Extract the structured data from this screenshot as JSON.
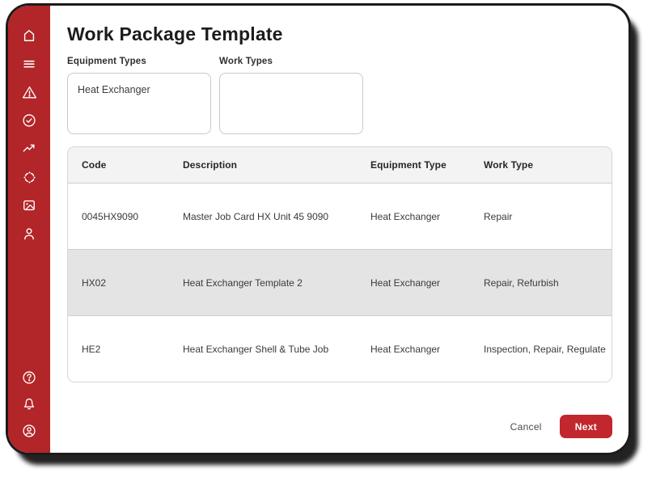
{
  "page": {
    "title": "Work Package Template"
  },
  "sidebar": {
    "top_icons": [
      "home-icon",
      "menu-icon",
      "alert-triangle-icon",
      "check-circle-icon",
      "trending-up-icon",
      "hub-icon",
      "image-icon",
      "user-icon"
    ],
    "bottom_icons": [
      "help-circle-icon",
      "bell-icon",
      "account-circle-icon"
    ]
  },
  "form": {
    "equipment_types": {
      "label": "Equipment Types",
      "value": "Heat Exchanger"
    },
    "work_types": {
      "label": "Work Types",
      "value": ""
    }
  },
  "table": {
    "columns": [
      "Code",
      "Description",
      "Equipment Type",
      "Work Type"
    ],
    "rows": [
      {
        "code": "0045HX9090",
        "description": "Master Job Card HX Unit 45 9090",
        "equipment_type": "Heat Exchanger",
        "work_type": "Repair",
        "selected": false
      },
      {
        "code": "HX02",
        "description": "Heat Exchanger Template 2",
        "equipment_type": "Heat Exchanger",
        "work_type": "Repair, Refurbish",
        "selected": true
      },
      {
        "code": "HE2",
        "description": "Heat Exchanger Shell & Tube Job",
        "equipment_type": "Heat Exchanger",
        "work_type": "Inspection, Repair, Regulate",
        "selected": false
      }
    ]
  },
  "actions": {
    "cancel": "Cancel",
    "next": "Next"
  },
  "colors": {
    "sidebar_red": "#b22528",
    "next_button_red": "#c1272d",
    "row_highlight": "#e4e4e4",
    "table_header_bg": "#f3f3f3",
    "window_shadow": "#1b1b1b"
  }
}
